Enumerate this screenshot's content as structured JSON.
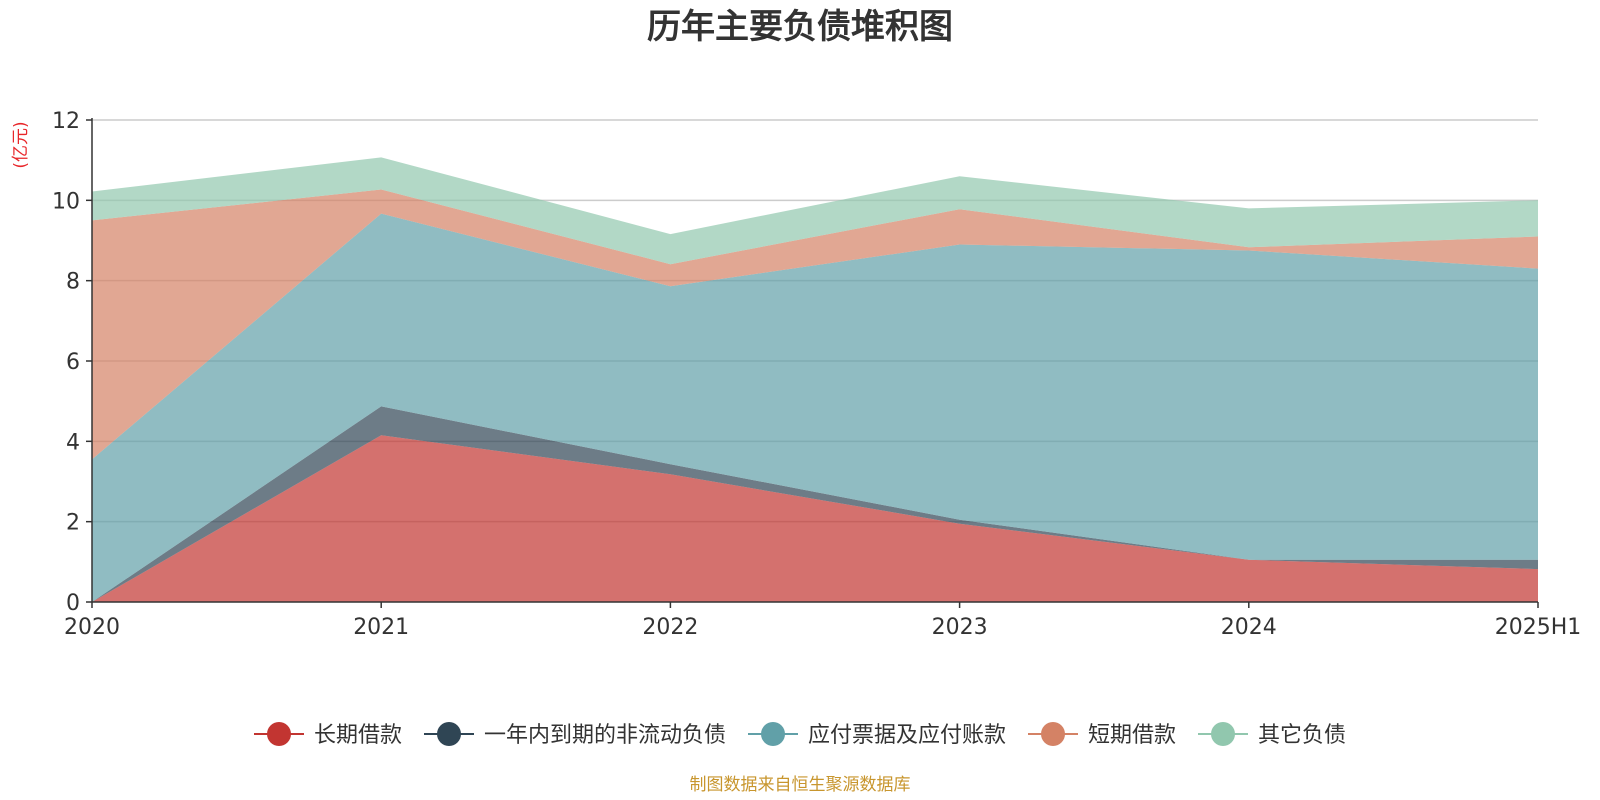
{
  "chart_data": {
    "type": "area",
    "stacked": true,
    "title": "历年主要负债堆积图",
    "unit_label": "(亿元)",
    "categories": [
      "2020",
      "2021",
      "2022",
      "2023",
      "2024",
      "2025H1"
    ],
    "ylim": [
      0,
      12
    ],
    "yticks": [
      "0",
      "2",
      "4",
      "6",
      "8",
      "10",
      "12"
    ],
    "grid": true,
    "legend_position": "bottom",
    "series": [
      {
        "name": "长期借款",
        "color": "#c23531",
        "values": [
          0.0,
          4.15,
          3.18,
          1.95,
          1.05,
          0.82
        ]
      },
      {
        "name": "一年内到期的非流动负债",
        "color": "#2f4554",
        "values": [
          0.0,
          0.72,
          0.25,
          0.1,
          0.0,
          0.23
        ]
      },
      {
        "name": "应付票据及应付账款",
        "color": "#61a0a8",
        "values": [
          3.55,
          4.8,
          4.43,
          6.85,
          7.7,
          7.25
        ]
      },
      {
        "name": "短期借款",
        "color": "#d48265",
        "values": [
          5.95,
          0.6,
          0.55,
          0.88,
          0.08,
          0.8
        ]
      },
      {
        "name": "其它负债",
        "color": "#91c7ae",
        "values": [
          0.72,
          0.8,
          0.75,
          0.82,
          0.97,
          0.9
        ]
      }
    ],
    "source": "制图数据来自恒生聚源数据库"
  }
}
